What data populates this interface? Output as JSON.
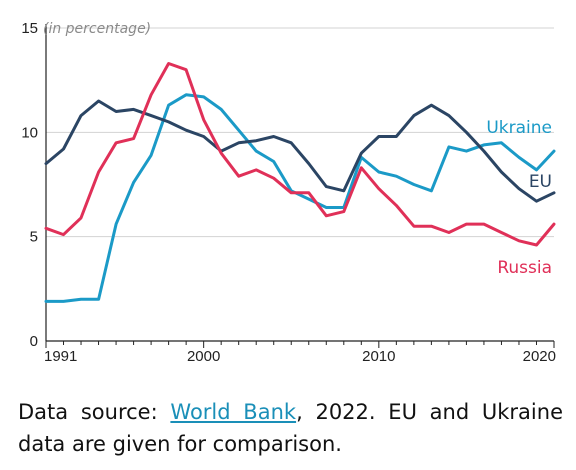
{
  "chart_data": {
    "type": "line",
    "unit_label": "(in percentage)",
    "ylim": [
      0,
      15
    ],
    "yticks": [
      0,
      5,
      10,
      15
    ],
    "xlim": [
      1991,
      2020
    ],
    "xticks": [
      1991,
      2000,
      2010,
      2020
    ],
    "grid": true,
    "x": [
      1991,
      1992,
      1993,
      1994,
      1995,
      1996,
      1997,
      1998,
      1999,
      2000,
      2001,
      2002,
      2003,
      2004,
      2005,
      2006,
      2007,
      2008,
      2009,
      2010,
      2011,
      2012,
      2013,
      2014,
      2015,
      2016,
      2017,
      2018,
      2019,
      2020
    ],
    "series": [
      {
        "name": "Ukraine",
        "color": "#1b9ac7",
        "values": [
          1.9,
          1.9,
          2.0,
          2.0,
          5.6,
          7.6,
          8.9,
          11.3,
          11.8,
          11.7,
          11.1,
          10.1,
          9.1,
          8.6,
          7.2,
          6.8,
          6.4,
          6.4,
          8.8,
          8.1,
          7.9,
          7.5,
          7.2,
          9.3,
          9.1,
          9.4,
          9.5,
          8.8,
          8.2,
          9.1
        ]
      },
      {
        "name": "EU",
        "color": "#2b4564",
        "values": [
          8.5,
          9.2,
          10.8,
          11.5,
          11.0,
          11.1,
          10.8,
          10.5,
          10.1,
          9.8,
          9.1,
          9.5,
          9.6,
          9.8,
          9.5,
          8.5,
          7.4,
          7.2,
          9.0,
          9.8,
          9.8,
          10.8,
          11.3,
          10.8,
          10.0,
          9.1,
          8.1,
          7.3,
          6.7,
          7.1
        ]
      },
      {
        "name": "Russia",
        "color": "#e03058",
        "values": [
          5.4,
          5.1,
          5.9,
          8.1,
          9.5,
          9.7,
          11.8,
          13.3,
          13.0,
          10.6,
          9.0,
          7.9,
          8.2,
          7.8,
          7.1,
          7.1,
          6.0,
          6.2,
          8.3,
          7.3,
          6.5,
          5.5,
          5.5,
          5.2,
          5.6,
          5.6,
          5.2,
          4.8,
          4.6,
          5.6
        ]
      }
    ]
  },
  "source": {
    "prefix": "Data source: ",
    "link_text": "World Bank",
    "suffix": ", 2022. EU and Ukraine data are given for comparison."
  }
}
